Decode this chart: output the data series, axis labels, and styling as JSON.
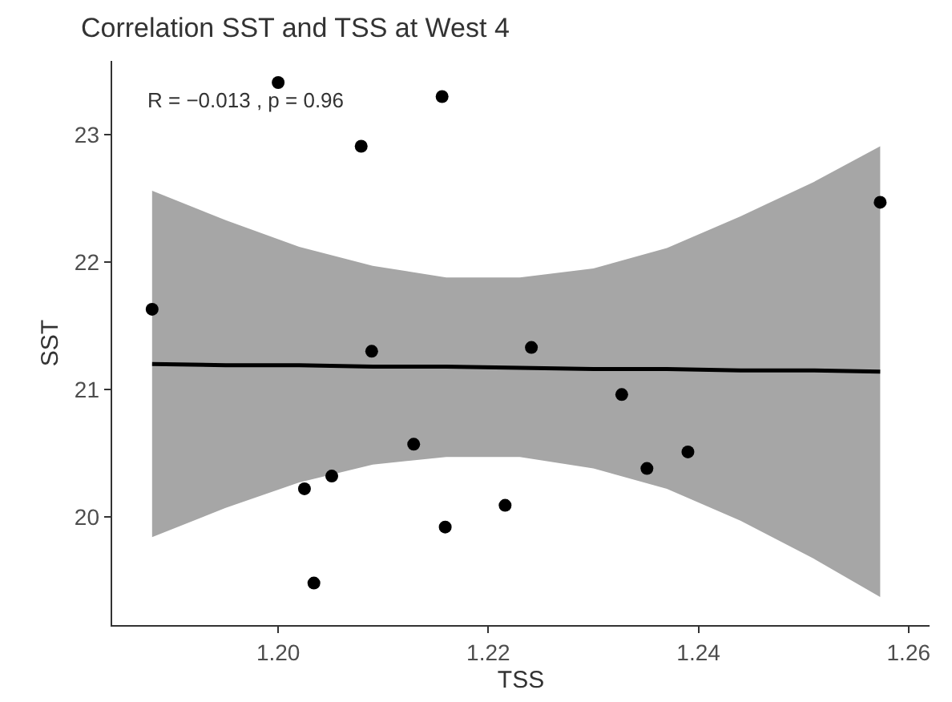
{
  "chart_data": {
    "type": "scatter",
    "title": "Correlation SST and TSS at West 4",
    "xlabel": "TSS",
    "ylabel": "SST",
    "annotations": [
      "R = −0.013 , p = 0.96"
    ],
    "xlim": [
      1.1842,
      1.262
    ],
    "xticks": [
      {
        "value": 1.2,
        "label": "1.20"
      },
      1.22,
      1.24,
      1.26
    ],
    "ylim": [
      19.15,
      23.58
    ],
    "yticks": [
      20,
      21,
      22,
      23
    ],
    "grid": false,
    "marker": "circle",
    "series": [
      {
        "type": "line",
        "color": "#000000",
        "x": [
          1.188,
          1.195,
          1.202,
          1.209,
          1.216,
          1.223,
          1.23,
          1.237,
          1.244,
          1.251,
          1.2573
        ],
        "values": [
          21.2,
          21.19,
          21.19,
          21.18,
          21.18,
          21.17,
          21.16,
          21.16,
          21.15,
          21.15,
          21.14
        ],
        "lower": [
          19.84,
          20.07,
          20.27,
          20.41,
          20.47,
          20.47,
          20.38,
          20.22,
          19.97,
          19.67,
          19.37
        ],
        "upper": [
          22.56,
          22.33,
          22.12,
          21.97,
          21.88,
          21.88,
          21.95,
          22.11,
          22.36,
          22.63,
          22.91
        ],
        "marker": "none"
      },
      {
        "color": "#000000",
        "x": [
          1.188,
          1.2,
          1.2156,
          1.2079,
          1.2089,
          1.2129,
          1.2025,
          1.2051,
          1.2034,
          1.2159,
          1.2216,
          1.2241,
          1.2327,
          1.2351,
          1.239,
          1.2573
        ],
        "values": [
          21.63,
          23.41,
          23.3,
          22.91,
          21.3,
          20.57,
          20.22,
          20.32,
          19.48,
          19.92,
          20.09,
          21.33,
          20.96,
          20.38,
          20.51,
          22.47
        ]
      }
    ]
  }
}
